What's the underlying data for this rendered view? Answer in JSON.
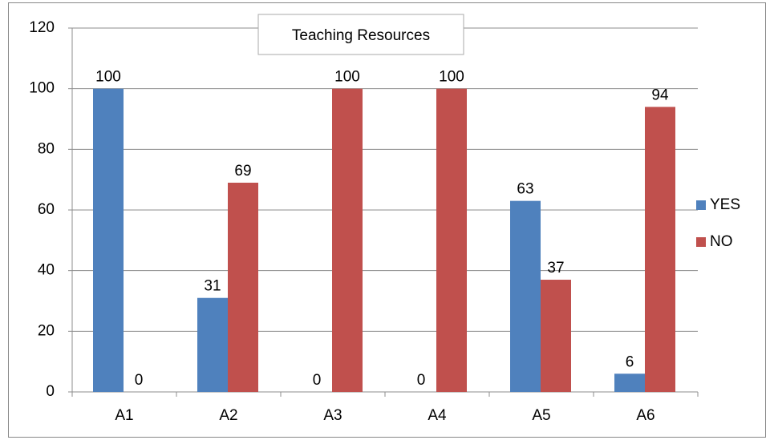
{
  "chart_data": {
    "type": "bar",
    "title": "Teaching Resources",
    "categories": [
      "A1",
      "A2",
      "A3",
      "A4",
      "A5",
      "A6"
    ],
    "series": [
      {
        "name": "YES",
        "color": "#4f81bd",
        "values": [
          100,
          31,
          0,
          0,
          63,
          6
        ]
      },
      {
        "name": "NO",
        "color": "#c0504d",
        "values": [
          0,
          69,
          100,
          100,
          37,
          94
        ]
      }
    ],
    "ylim": [
      0,
      120
    ],
    "yticks": [
      0,
      20,
      40,
      60,
      80,
      100,
      120
    ],
    "grid": true,
    "legend": "right"
  }
}
